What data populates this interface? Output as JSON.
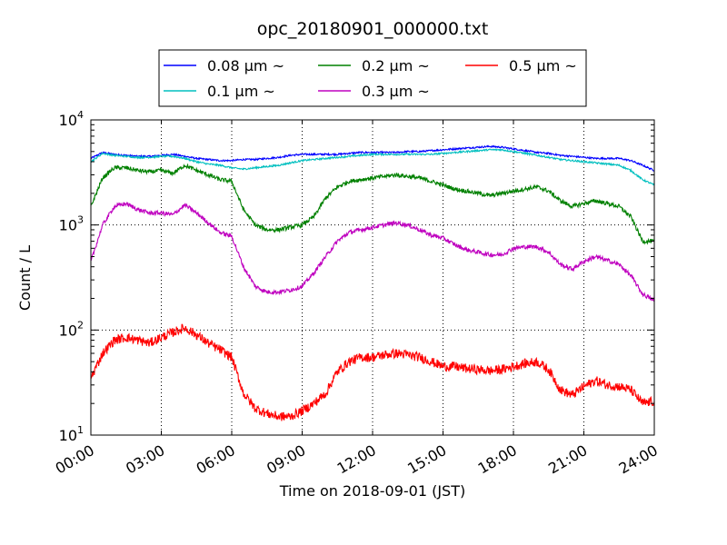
{
  "chart_data": {
    "type": "line",
    "title": "opc_20180901_000000.txt",
    "xlabel": "Time on 2018-09-01 (JST)",
    "ylabel": "Count / L",
    "x_tick_labels": [
      "00:00",
      "03:00",
      "06:00",
      "09:00",
      "12:00",
      "15:00",
      "18:00",
      "21:00",
      "24:00"
    ],
    "y_tick_labels": [
      {
        "base": "10",
        "exp": "1"
      },
      {
        "base": "10",
        "exp": "2"
      },
      {
        "base": "10",
        "exp": "3"
      },
      {
        "base": "10",
        "exp": "4"
      }
    ],
    "x_unit": "hours",
    "xlim": [
      0,
      24
    ],
    "ylim": [
      10,
      10000
    ],
    "yscale": "log",
    "grid": true,
    "legend_position": "top-center",
    "x": [
      0,
      0.5,
      1,
      1.5,
      2,
      2.5,
      3,
      3.5,
      4,
      4.5,
      5,
      5.5,
      6,
      6.5,
      7,
      7.5,
      8,
      8.5,
      9,
      9.5,
      10,
      10.5,
      11,
      11.5,
      12,
      12.5,
      13,
      13.5,
      14,
      14.5,
      15,
      15.5,
      16,
      16.5,
      17,
      17.5,
      18,
      18.5,
      19,
      19.5,
      20,
      20.5,
      21,
      21.5,
      22,
      22.5,
      23,
      23.5,
      24
    ],
    "series": [
      {
        "name": "0.08 μm ~",
        "color": "#0000ff",
        "values": [
          4300,
          4900,
          4700,
          4600,
          4500,
          4500,
          4600,
          4700,
          4500,
          4300,
          4200,
          4100,
          4100,
          4200,
          4200,
          4300,
          4400,
          4600,
          4700,
          4700,
          4700,
          4700,
          4800,
          4900,
          4900,
          4900,
          4900,
          5000,
          5000,
          5100,
          5200,
          5300,
          5400,
          5500,
          5600,
          5500,
          5300,
          5100,
          4900,
          4800,
          4600,
          4500,
          4400,
          4300,
          4300,
          4300,
          4100,
          3700,
          3300
        ]
      },
      {
        "name": "0.1 μm ~",
        "color": "#00bfbf",
        "values": [
          4000,
          4800,
          4600,
          4500,
          4400,
          4400,
          4500,
          4500,
          4300,
          4000,
          3800,
          3700,
          3500,
          3400,
          3500,
          3600,
          3700,
          3900,
          4100,
          4200,
          4300,
          4400,
          4500,
          4600,
          4700,
          4700,
          4700,
          4700,
          4700,
          4700,
          4800,
          4900,
          5000,
          5100,
          5200,
          5200,
          5000,
          4800,
          4600,
          4400,
          4200,
          4100,
          4000,
          3900,
          3800,
          3700,
          3300,
          2700,
          2400
        ]
      },
      {
        "name": "0.2 μm ~",
        "color": "#008000",
        "values": [
          1500,
          2800,
          3500,
          3500,
          3300,
          3200,
          3300,
          3100,
          3700,
          3300,
          3000,
          2700,
          2600,
          1400,
          1000,
          900,
          900,
          950,
          1000,
          1200,
          1800,
          2300,
          2600,
          2700,
          2800,
          2900,
          3000,
          2900,
          2800,
          2600,
          2400,
          2200,
          2100,
          2000,
          1900,
          2000,
          2100,
          2200,
          2300,
          2100,
          1700,
          1500,
          1600,
          1700,
          1600,
          1500,
          1200,
          700,
          700
        ]
      },
      {
        "name": "0.3 μm ~",
        "color": "#bf00bf",
        "values": [
          450,
          1000,
          1500,
          1600,
          1400,
          1300,
          1300,
          1250,
          1550,
          1300,
          1050,
          850,
          780,
          400,
          260,
          230,
          230,
          240,
          260,
          350,
          500,
          700,
          850,
          900,
          950,
          1000,
          1050,
          1000,
          900,
          800,
          750,
          650,
          580,
          550,
          520,
          520,
          600,
          620,
          620,
          550,
          420,
          380,
          450,
          500,
          460,
          420,
          330,
          220,
          190
        ]
      },
      {
        "name": "0.5 μm ~",
        "color": "#ff0000",
        "values": [
          35,
          60,
          80,
          85,
          80,
          75,
          85,
          95,
          105,
          90,
          75,
          65,
          55,
          25,
          18,
          16,
          15,
          15,
          17,
          20,
          25,
          40,
          50,
          55,
          55,
          58,
          60,
          58,
          55,
          50,
          45,
          45,
          43,
          42,
          41,
          42,
          45,
          48,
          50,
          42,
          27,
          24,
          29,
          33,
          30,
          29,
          27,
          20,
          21
        ]
      }
    ]
  }
}
